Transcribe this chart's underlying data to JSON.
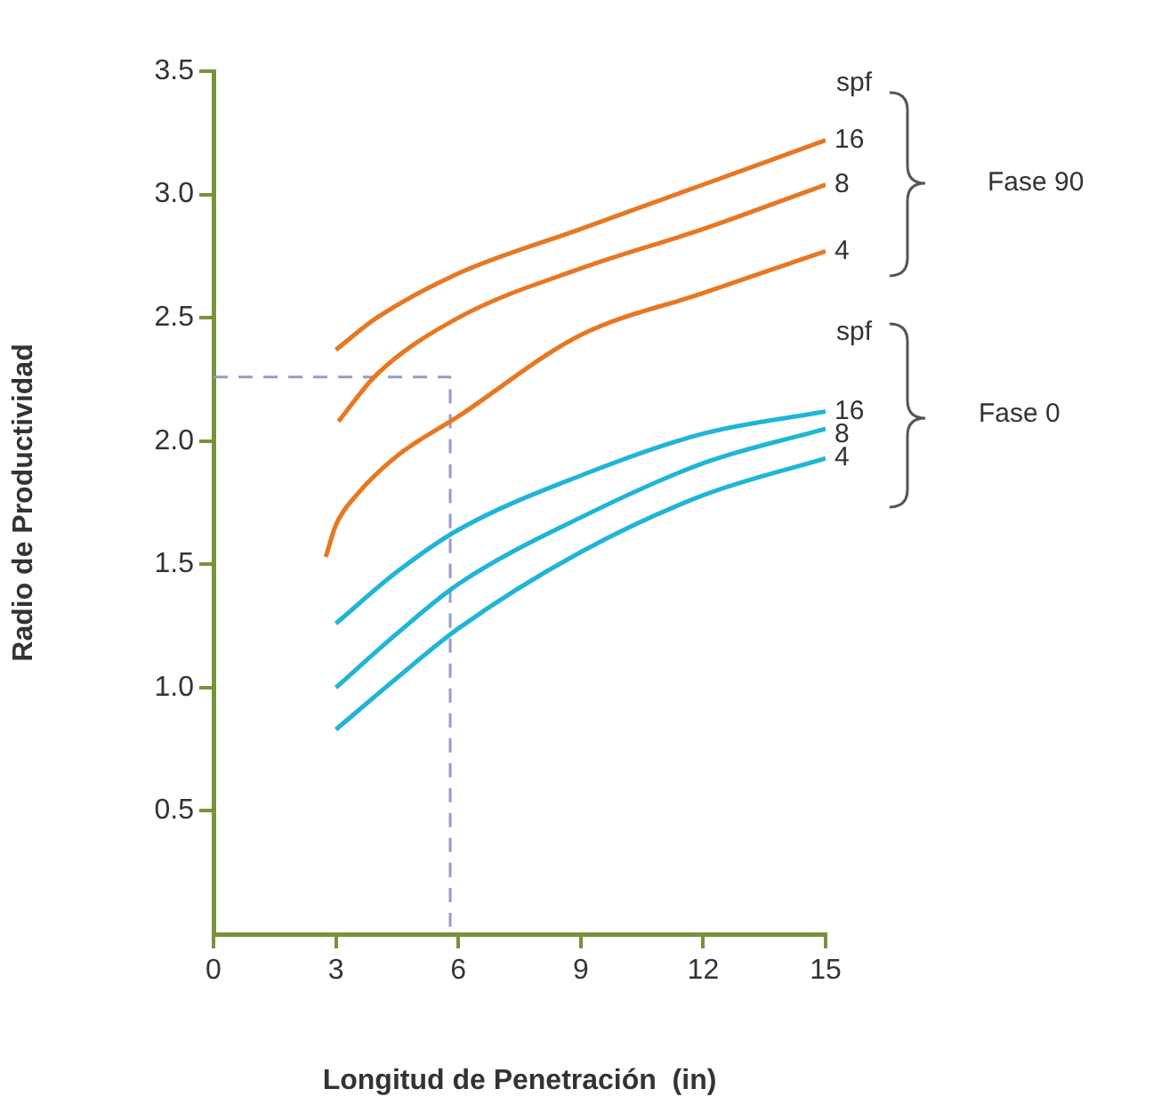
{
  "chart_data": {
    "type": "line",
    "xlabel": "Longitud de Penetración  (in)",
    "ylabel": "Radio de Productividad",
    "xlim": [
      0,
      15
    ],
    "xticks": [
      0,
      3,
      6,
      9,
      12,
      15
    ],
    "ylim": [
      0,
      3.5
    ],
    "yticks": [
      0.5,
      {
        "value": 1,
        "label": "1.0"
      },
      1.5,
      {
        "value": 2,
        "label": "2.0"
      },
      2.5,
      {
        "value": 3,
        "label": "3.0"
      },
      3.5
    ],
    "grid": false,
    "legend": false,
    "marker": "none",
    "series": [
      {
        "name": "16",
        "color": "#e87722",
        "x": [
          3,
          4,
          6,
          9,
          12,
          15
        ],
        "values": [
          2.37,
          2.5,
          2.68,
          2.86,
          3.04,
          3.22
        ]
      },
      {
        "name": "8",
        "color": "#e87722",
        "x": [
          3.06,
          4,
          6,
          9,
          12,
          15
        ],
        "values": [
          2.08,
          2.27,
          2.5,
          2.7,
          2.86,
          3.04
        ]
      },
      {
        "name": "4",
        "color": "#e87722",
        "x": [
          2.75,
          3,
          3.5,
          4.5,
          6,
          9,
          12,
          15
        ],
        "values": [
          1.53,
          1.66,
          1.78,
          1.94,
          2.1,
          2.43,
          2.6,
          2.77
        ]
      },
      {
        "name": "16",
        "color": "#1fb5d8",
        "x": [
          3,
          4.5,
          6,
          9,
          12,
          15
        ],
        "values": [
          1.26,
          1.47,
          1.64,
          1.86,
          2.03,
          2.12
        ]
      },
      {
        "name": "8",
        "color": "#1fb5d8",
        "x": [
          3,
          4.5,
          6,
          9,
          12,
          15
        ],
        "values": [
          1.0,
          1.22,
          1.42,
          1.69,
          1.91,
          2.05
        ]
      },
      {
        "name": "4",
        "color": "#1fb5d8",
        "x": [
          3,
          4.5,
          6,
          9,
          12,
          15
        ],
        "values": [
          0.83,
          1.04,
          1.24,
          1.55,
          1.78,
          1.93
        ]
      },
      {
        "color": "#9a9ac8",
        "line_style": "dashed",
        "x": [
          0,
          5.8,
          5.8
        ],
        "values": [
          2.26,
          2.26,
          0
        ]
      }
    ],
    "annotations": [
      "spf",
      "Fase 90",
      "spf",
      "Fase 0"
    ]
  }
}
